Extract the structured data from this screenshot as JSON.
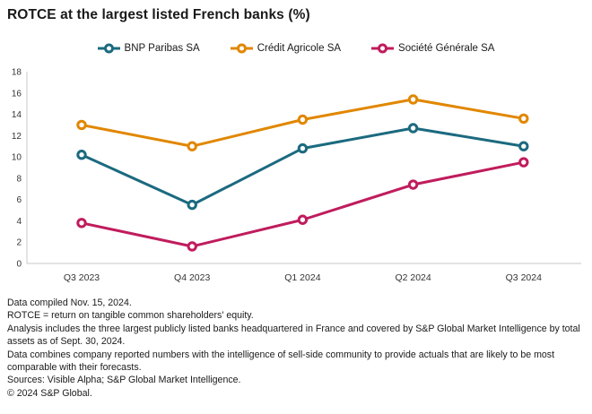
{
  "title": "ROTCE at the largest listed French banks (%)",
  "chart_data": {
    "type": "line",
    "title": "ROTCE at the largest listed French banks (%)",
    "categories": [
      "Q3 2023",
      "Q4 2023",
      "Q1 2024",
      "Q2 2024",
      "Q3 2024"
    ],
    "series": [
      {
        "name": "BNP Paribas SA",
        "color": "#1B6A7F",
        "values": [
          10.2,
          5.5,
          10.8,
          12.7,
          11.0
        ]
      },
      {
        "name": "Crédit Agricole SA",
        "color": "#E18700",
        "values": [
          13.0,
          11.0,
          13.5,
          15.4,
          13.6
        ]
      },
      {
        "name": "Société Générale SA",
        "color": "#C01C5D",
        "values": [
          3.8,
          1.6,
          4.1,
          7.4,
          9.5
        ]
      }
    ],
    "xlabel": "",
    "ylabel": "",
    "ylim": [
      0,
      18
    ],
    "ytick_step": 2,
    "grid": false,
    "legend_position": "top",
    "marker": "open-circle",
    "axis_color": "#c9c9c9",
    "tick_label_color": "#333333"
  },
  "footnotes": [
    "Data compiled Nov. 15, 2024.",
    "ROTCE = return on tangible common shareholders' equity.",
    "Analysis includes the three largest publicly listed banks headquartered in France and covered by S&P Global Market Intelligence by total assets as of Sept. 30, 2024.",
    "Data combines company reported numbers with the intelligence of sell-side community to provide actuals that are likely to be most comparable with their forecasts.",
    "Sources: Visible Alpha; S&P Global Market Intelligence.",
    "© 2024 S&P Global."
  ]
}
